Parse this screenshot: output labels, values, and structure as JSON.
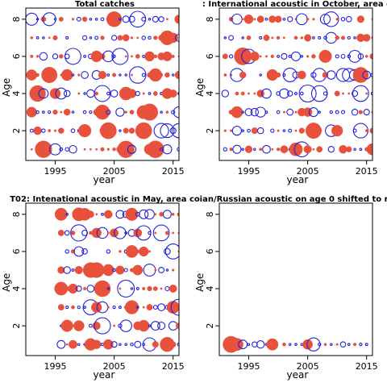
{
  "colors": {
    "observed_positive": "#e8513c",
    "observed_negative": "#2222dd",
    "frame": "#000000"
  },
  "chart_data": [
    {
      "type": "scatter",
      "title": "Total catches",
      "xlabel": "year",
      "ylabel": "Age",
      "xlim": [
        1990,
        2016
      ],
      "ylim": [
        0.4,
        8.6
      ],
      "xticks": [
        1995,
        2005,
        2015
      ],
      "yticks": [
        2,
        4,
        6,
        8
      ],
      "years": [
        1991,
        2016
      ],
      "ages": [
        1,
        2,
        3,
        4,
        5,
        6,
        7,
        8
      ]
    },
    {
      "type": "scatter",
      "title": ":   International acoustic in October, area c",
      "xlabel": "year",
      "ylabel": "Age",
      "xlim": [
        1990,
        2016
      ],
      "ylim": [
        0.4,
        8.6
      ],
      "xticks": [
        1995,
        2005,
        2015
      ],
      "yticks": [
        2,
        4,
        6,
        8
      ],
      "years": [
        1991,
        2016
      ],
      "ages": [
        1,
        2,
        3,
        4,
        5,
        6,
        7,
        8
      ]
    },
    {
      "type": "scatter",
      "title": "T02: Intenational acoustic in May, area co",
      "xlabel": "year",
      "ylabel": "Age",
      "xlim": [
        1990,
        2016
      ],
      "ylim": [
        0.4,
        8.6
      ],
      "xticks": [
        1995,
        2005,
        2015
      ],
      "yticks": [
        2,
        4,
        6,
        8
      ],
      "years": [
        1996,
        2016
      ],
      "ages": [
        1,
        2,
        3,
        4,
        5,
        6,
        7,
        8
      ]
    },
    {
      "type": "scatter",
      "title": "ian/Russian acoustic on age 0 shifted to re",
      "xlabel": "year",
      "ylabel": "Age",
      "xlim": [
        1990,
        2016
      ],
      "ylim": [
        0.4,
        8.6
      ],
      "xticks": [
        1995,
        2005,
        2015
      ],
      "yticks": [
        2,
        4,
        6,
        8
      ],
      "years": [
        1992,
        2016
      ],
      "ages": [
        1
      ]
    }
  ]
}
